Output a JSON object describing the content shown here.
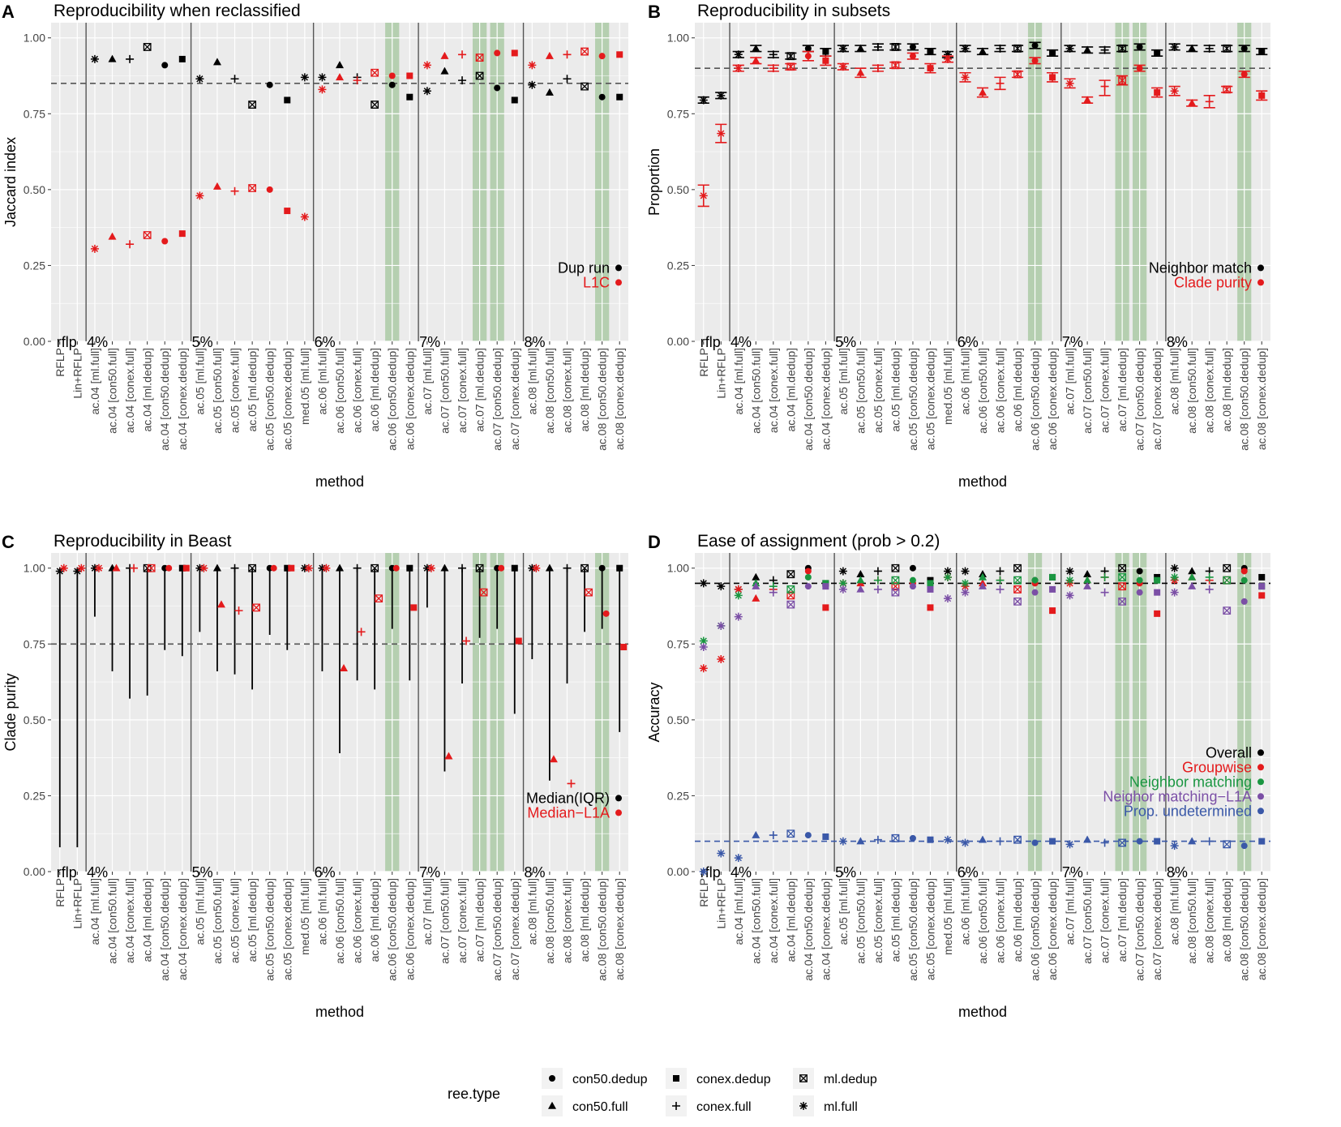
{
  "figure": {
    "x_axis_title": "method",
    "methods": [
      "RFLP",
      "Lin+RFLP",
      "ac.04 [ml.full]",
      "ac.04 [con50.full]",
      "ac.04 [conex.full]",
      "ac.04 [ml.dedup]",
      "ac.04 [con50.dedup]",
      "ac.04 [conex.dedup]",
      "ac.05 [ml.full]",
      "ac.05 [con50.full]",
      "ac.05 [conex.full]",
      "ac.05 [ml.dedup]",
      "ac.05 [con50.dedup]",
      "ac.05 [conex.dedup]",
      "med.05 [ml.full]",
      "ac.06 [ml.full]",
      "ac.06 [con50.full]",
      "ac.06 [conex.full]",
      "ac.06 [ml.dedup]",
      "ac.06 [con50.dedup]",
      "ac.06 [conex.dedup]",
      "ac.07 [ml.full]",
      "ac.07 [con50.full]",
      "ac.07 [conex.full]",
      "ac.07 [ml.dedup]",
      "ac.07 [con50.dedup]",
      "ac.07 [conex.dedup]",
      "ac.08 [ml.full]",
      "ac.08 [con50.full]",
      "ac.08 [conex.full]",
      "ac.08 [ml.dedup]",
      "ac.08 [con50.dedup]",
      "ac.08 [conex.dedup]"
    ],
    "shapes": [
      "*",
      "*",
      "*",
      "tri",
      "plus",
      "box",
      "dot",
      "sq",
      "*",
      "tri",
      "plus",
      "box",
      "dot",
      "sq",
      "*",
      "*",
      "tri",
      "plus",
      "box",
      "dot",
      "sq",
      "*",
      "tri",
      "plus",
      "box",
      "dot",
      "sq",
      "*",
      "tri",
      "plus",
      "box",
      "dot",
      "sq"
    ],
    "group_labels": [
      {
        "text": "rflp",
        "index": 0
      },
      {
        "text": "4%",
        "index": 2
      },
      {
        "text": "5%",
        "index": 8
      },
      {
        "text": "6%",
        "index": 15
      },
      {
        "text": "7%",
        "index": 21
      },
      {
        "text": "8%",
        "index": 27
      }
    ],
    "group_lines": [
      1.5,
      7.5,
      14.5,
      20.5,
      26.5
    ],
    "highlight_columns": [
      19,
      24,
      25,
      31
    ],
    "colors": {
      "black": "#000000",
      "red": "#e41a1c",
      "green": "#1a9641",
      "purple": "#7b4fa6",
      "blue": "#3a58a8",
      "panel_bg": "#ebebeb",
      "grid": "#ffffff",
      "highlight": "#b5cfb0",
      "ref_line": "#555555"
    },
    "legend": {
      "title": "ree.type",
      "items": [
        {
          "shape": "dot",
          "label": "con50.dedup"
        },
        {
          "shape": "tri",
          "label": "con50.full"
        },
        {
          "shape": "sq",
          "label": "conex.dedup"
        },
        {
          "shape": "plus",
          "label": "conex.full"
        },
        {
          "shape": "box",
          "label": "ml.dedup"
        },
        {
          "shape": "*",
          "label": "ml.full"
        }
      ]
    }
  },
  "chart_data": [
    {
      "panel": "A",
      "type": "scatter",
      "title": "Reproducibility when reclassified",
      "xlabel": "method",
      "ylabel": "Jaccard index",
      "ylim": [
        0,
        1.05
      ],
      "yticks": [
        "0.00",
        "0.25",
        "0.50",
        "0.75",
        "1.00"
      ],
      "methods_from": 2,
      "ref_lines": [
        {
          "y": 0.85,
          "color": "#555555"
        }
      ],
      "legend_position": "right-center",
      "series": [
        {
          "name": "Dup run",
          "color": "#000000",
          "values": [
            0.93,
            0.93,
            0.93,
            0.97,
            0.91,
            0.93,
            0.865,
            0.92,
            0.865,
            0.78,
            0.845,
            0.795,
            0.87,
            0.87,
            0.91,
            0.87,
            0.78,
            0.845,
            0.805,
            0.825,
            0.89,
            0.86,
            0.875,
            0.835,
            0.795,
            0.845,
            0.82,
            0.865,
            0.84,
            0.805,
            0.805
          ]
        },
        {
          "name": "L1C",
          "color": "#e41a1c",
          "values": [
            0.305,
            0.345,
            0.32,
            0.35,
            0.33,
            0.355,
            0.48,
            0.51,
            0.495,
            0.505,
            0.5,
            0.43,
            0.41,
            0.83,
            0.87,
            0.86,
            0.885,
            0.875,
            0.875,
            0.91,
            0.94,
            0.945,
            0.935,
            0.95,
            0.95,
            0.91,
            0.94,
            0.945,
            0.955,
            0.94,
            0.945
          ]
        }
      ]
    },
    {
      "panel": "B",
      "type": "scatter",
      "title": "Reproducibility in subsets",
      "xlabel": "method",
      "ylabel": "Proportion",
      "ylim": [
        0,
        1.05
      ],
      "yticks": [
        "0.00",
        "0.25",
        "0.50",
        "0.75",
        "1.00"
      ],
      "methods_from": 0,
      "error_bars": true,
      "ref_lines": [
        {
          "y": 0.9,
          "color": "#555555"
        }
      ],
      "legend_position": "right-center",
      "series": [
        {
          "name": "Neighbor match",
          "color": "#000000",
          "values": [
            0.795,
            0.81,
            0.945,
            0.965,
            0.945,
            0.94,
            0.965,
            0.955,
            0.965,
            0.965,
            0.97,
            0.97,
            0.97,
            0.955,
            0.945,
            0.965,
            0.955,
            0.965,
            0.965,
            0.975,
            0.95,
            0.965,
            0.96,
            0.96,
            0.965,
            0.97,
            0.95,
            0.97,
            0.965,
            0.965,
            0.965,
            0.965,
            0.955
          ],
          "lower": [
            0.785,
            0.8,
            0.935,
            0.955,
            0.935,
            0.93,
            0.955,
            0.94,
            0.955,
            0.955,
            0.96,
            0.96,
            0.96,
            0.945,
            0.935,
            0.955,
            0.945,
            0.955,
            0.955,
            0.965,
            0.94,
            0.955,
            0.95,
            0.95,
            0.955,
            0.96,
            0.94,
            0.96,
            0.955,
            0.955,
            0.955,
            0.955,
            0.945
          ],
          "upper": [
            0.805,
            0.82,
            0.955,
            0.975,
            0.955,
            0.95,
            0.975,
            0.965,
            0.975,
            0.975,
            0.98,
            0.98,
            0.98,
            0.965,
            0.955,
            0.975,
            0.965,
            0.975,
            0.975,
            0.985,
            0.96,
            0.975,
            0.97,
            0.97,
            0.975,
            0.98,
            0.96,
            0.98,
            0.975,
            0.975,
            0.975,
            0.975,
            0.965
          ]
        },
        {
          "name": "Clade purity",
          "color": "#e41a1c",
          "values": [
            0.48,
            0.685,
            0.9,
            0.925,
            0.9,
            0.905,
            0.94,
            0.925,
            0.905,
            0.885,
            0.9,
            0.91,
            0.94,
            0.9,
            0.93,
            0.87,
            0.82,
            0.85,
            0.88,
            0.925,
            0.87,
            0.85,
            0.795,
            0.84,
            0.86,
            0.9,
            0.82,
            0.825,
            0.785,
            0.79,
            0.83,
            0.88,
            0.81
          ],
          "lower": [
            0.445,
            0.655,
            0.89,
            0.915,
            0.89,
            0.895,
            0.925,
            0.91,
            0.895,
            0.87,
            0.89,
            0.9,
            0.93,
            0.885,
            0.92,
            0.855,
            0.805,
            0.83,
            0.87,
            0.915,
            0.855,
            0.835,
            0.785,
            0.81,
            0.845,
            0.89,
            0.805,
            0.81,
            0.775,
            0.77,
            0.82,
            0.87,
            0.795
          ],
          "upper": [
            0.515,
            0.715,
            0.91,
            0.935,
            0.91,
            0.915,
            0.955,
            0.94,
            0.915,
            0.9,
            0.91,
            0.92,
            0.95,
            0.915,
            0.94,
            0.885,
            0.835,
            0.87,
            0.89,
            0.935,
            0.885,
            0.865,
            0.805,
            0.86,
            0.875,
            0.91,
            0.835,
            0.84,
            0.795,
            0.81,
            0.84,
            0.89,
            0.825
          ]
        }
      ]
    },
    {
      "panel": "C",
      "type": "scatter",
      "title": "Reproducibility in Beast",
      "xlabel": "method",
      "ylabel": "Clade purity",
      "ylim": [
        0,
        1.05
      ],
      "yticks": [
        "0.00",
        "0.25",
        "0.50",
        "0.75",
        "1.00"
      ],
      "methods_from": 0,
      "iqr_bars": true,
      "ref_lines": [
        {
          "y": 0.75,
          "color": "#555555"
        }
      ],
      "legend_position": "bottom-right",
      "series": [
        {
          "name": "Median(IQR)",
          "color": "#000000",
          "values": [
            0.99,
            0.99,
            1,
            1,
            1,
            1,
            1,
            1,
            1,
            1,
            1,
            1,
            1,
            1,
            1,
            1,
            1,
            1,
            1,
            1,
            1,
            1,
            1,
            1,
            1,
            1,
            1,
            1,
            1,
            1,
            1,
            1,
            1
          ],
          "lower": [
            0.08,
            0.08,
            0.84,
            0.66,
            0.57,
            0.58,
            0.73,
            0.71,
            0.79,
            0.66,
            0.65,
            0.6,
            0.78,
            0.73,
            1,
            0.66,
            0.39,
            0.63,
            0.6,
            0.8,
            0.63,
            0.87,
            0.33,
            0.62,
            0.77,
            0.8,
            0.52,
            0.7,
            0.3,
            0.62,
            0.79,
            0.8,
            0.46
          ],
          "upper": [
            1,
            1,
            1,
            1,
            1,
            1,
            1,
            1,
            1,
            1,
            1,
            1,
            1,
            1,
            1,
            1,
            1,
            1,
            1,
            1,
            1,
            1,
            1,
            1,
            1,
            1,
            1,
            1,
            1,
            1,
            1,
            1,
            1
          ]
        },
        {
          "name": "Median−L1A",
          "color": "#e41a1c",
          "values": [
            1,
            1,
            1,
            1,
            1,
            1,
            1,
            1,
            1,
            0.88,
            0.86,
            0.87,
            1,
            1,
            1,
            1,
            0.67,
            0.79,
            0.9,
            1,
            0.87,
            1,
            0.38,
            0.76,
            0.92,
            1,
            0.76,
            1,
            0.37,
            0.29,
            0.92,
            0.85,
            0.74
          ]
        }
      ]
    },
    {
      "panel": "D",
      "type": "scatter",
      "title": "Ease of assignment (prob > 0.2)",
      "xlabel": "method",
      "ylabel": "Accuracy",
      "ylim": [
        0,
        1.05
      ],
      "yticks": [
        "0.00",
        "0.25",
        "0.50",
        "0.75",
        "1.00"
      ],
      "methods_from": 0,
      "ref_lines": [
        {
          "y": 0.95,
          "color": "#000000"
        },
        {
          "y": 0.1,
          "color": "#3a58a8"
        }
      ],
      "legend_position": "right-center",
      "series": [
        {
          "name": "Overall",
          "color": "#000000",
          "values": [
            0.95,
            0.94,
            0.93,
            0.97,
            0.96,
            0.98,
            1,
            0.95,
            0.99,
            0.98,
            0.99,
            1,
            1,
            0.96,
            0.99,
            0.99,
            0.98,
            0.99,
            1,
            0.96,
            0.97,
            0.99,
            0.98,
            0.99,
            1,
            0.99,
            0.97,
            1,
            0.99,
            0.99,
            1,
            1,
            0.97
          ]
        },
        {
          "name": "Groupwise",
          "color": "#e41a1c",
          "values": [
            0.67,
            0.7,
            0.93,
            0.9,
            0.93,
            0.91,
            0.99,
            0.87,
            0.95,
            0.95,
            0.96,
            0.94,
            0.95,
            0.87,
            0.97,
            0.94,
            0.95,
            0.96,
            0.93,
            0.95,
            0.86,
            0.95,
            0.96,
            0.97,
            0.94,
            0.95,
            0.85,
            0.96,
            0.97,
            0.96,
            0.96,
            0.99,
            0.91
          ]
        },
        {
          "name": "Neighbor matching",
          "color": "#1a9641",
          "values": [
            0.76,
            0.81,
            0.91,
            0.95,
            0.94,
            0.93,
            0.97,
            0.95,
            0.95,
            0.96,
            0.96,
            0.96,
            0.96,
            0.95,
            0.97,
            0.95,
            0.97,
            0.96,
            0.96,
            0.96,
            0.97,
            0.96,
            0.96,
            0.97,
            0.97,
            0.96,
            0.96,
            0.97,
            0.97,
            0.97,
            0.96,
            0.96,
            0.94
          ]
        },
        {
          "name": "Neighor matching−L1A",
          "color": "#7b4fa6",
          "values": [
            0.74,
            0.81,
            0.84,
            0.94,
            0.92,
            0.88,
            0.94,
            0.94,
            0.93,
            0.93,
            0.93,
            0.92,
            0.94,
            0.93,
            0.9,
            0.92,
            0.94,
            0.93,
            0.89,
            0.92,
            0.93,
            0.91,
            0.94,
            0.92,
            0.89,
            0.92,
            0.92,
            0.92,
            0.94,
            0.93,
            0.86,
            0.89,
            0.94
          ]
        },
        {
          "name": "Prop. undetermined",
          "color": "#3a58a8",
          "values": [
            0,
            0.06,
            0.045,
            0.12,
            0.12,
            0.125,
            0.12,
            0.115,
            0.1,
            0.1,
            0.105,
            0.11,
            0.11,
            0.105,
            0.105,
            0.095,
            0.105,
            0.1,
            0.105,
            0.095,
            0.1,
            0.09,
            0.105,
            0.095,
            0.095,
            0.1,
            0.1,
            0.085,
            0.1,
            0.1,
            0.09,
            0.085,
            0.1
          ]
        }
      ]
    }
  ]
}
